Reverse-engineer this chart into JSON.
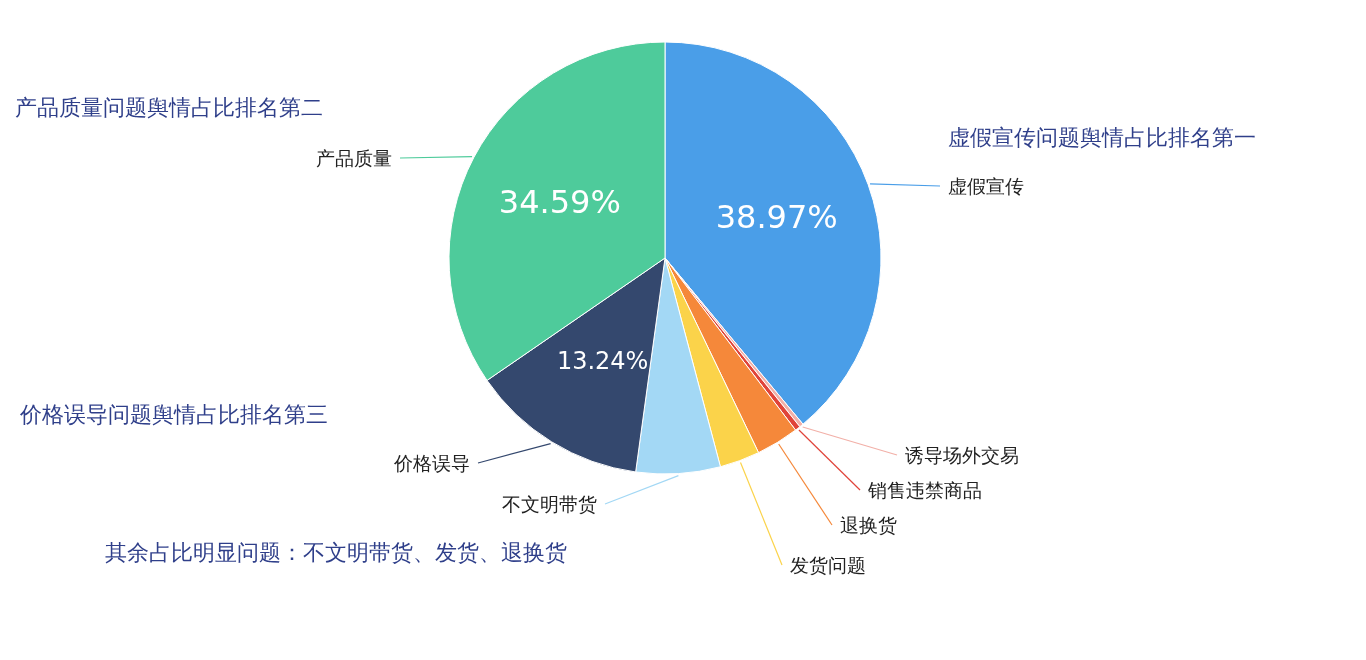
{
  "chart_data": {
    "type": "pie",
    "categories": [
      "虚假宣传",
      "诱导场外交易",
      "销售违禁商品",
      "退换货",
      "发货问题",
      "不文明带货",
      "价格误导",
      "产品质量"
    ],
    "values": [
      38.97,
      0.3,
      0.4,
      3.2,
      3.0,
      6.3,
      13.24,
      34.59
    ],
    "colors": [
      "#4a9ee8",
      "#f2b0a8",
      "#e0443a",
      "#f5883a",
      "#fbd34a",
      "#a3d8f5",
      "#34486e",
      "#4ecb9b"
    ],
    "value_labels": [
      "38.97%",
      null,
      null,
      null,
      null,
      null,
      "13.24%",
      "34.59%"
    ],
    "annotations": [
      "产品质量问题舆情占比排名第二",
      "虚假宣传问题舆情占比排名第一",
      "价格误导问题舆情占比排名第三",
      "其余占比明显问题：不文明带货、发货、退换货"
    ]
  }
}
